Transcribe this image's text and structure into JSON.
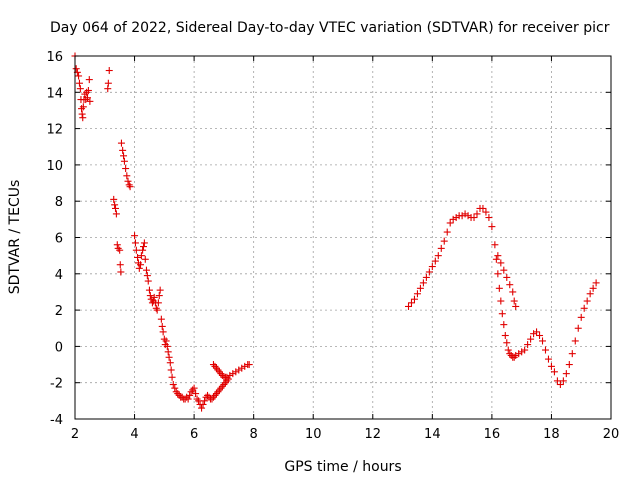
{
  "chart_data": {
    "type": "scatter",
    "title": "Day 064 of 2022, Sidereal Day-to-day VTEC variation (SDTVAR) for receiver picr",
    "xlabel": "GPS time / hours",
    "ylabel": "SDTVAR / TECUs",
    "xlim": [
      2,
      20
    ],
    "ylim": [
      -4,
      16
    ],
    "xticks": [
      "2",
      "4",
      "6",
      "8",
      "10",
      "12",
      "14",
      "16",
      "18",
      "20"
    ],
    "yticks": [
      "-4",
      "-2",
      "0",
      "2",
      "4",
      "6",
      "8",
      "10",
      "12",
      "14",
      "16"
    ],
    "grid": true,
    "marker": "+",
    "color": "#e00000",
    "series": [
      {
        "name": "SDTVAR",
        "points": [
          [
            2.0,
            16.0
          ],
          [
            2.04,
            15.3
          ],
          [
            2.08,
            15.1
          ],
          [
            2.12,
            14.9
          ],
          [
            2.15,
            14.5
          ],
          [
            2.18,
            14.2
          ],
          [
            2.2,
            13.6
          ],
          [
            2.22,
            13.1
          ],
          [
            2.24,
            12.8
          ],
          [
            2.26,
            12.6
          ],
          [
            2.28,
            13.2
          ],
          [
            2.3,
            13.6
          ],
          [
            2.33,
            13.9
          ],
          [
            2.36,
            13.6
          ],
          [
            2.39,
            14.0
          ],
          [
            2.42,
            13.7
          ],
          [
            2.45,
            14.1
          ],
          [
            2.48,
            14.7
          ],
          [
            2.5,
            13.5
          ],
          [
            3.1,
            14.2
          ],
          [
            3.12,
            14.5
          ],
          [
            3.15,
            15.2
          ],
          [
            3.3,
            8.1
          ],
          [
            3.33,
            7.8
          ],
          [
            3.36,
            7.6
          ],
          [
            3.39,
            7.3
          ],
          [
            3.42,
            5.6
          ],
          [
            3.45,
            5.4
          ],
          [
            3.5,
            5.3
          ],
          [
            3.52,
            4.5
          ],
          [
            3.54,
            4.1
          ],
          [
            3.56,
            11.2
          ],
          [
            3.6,
            10.8
          ],
          [
            3.63,
            10.5
          ],
          [
            3.66,
            10.2
          ],
          [
            3.7,
            9.8
          ],
          [
            3.74,
            9.4
          ],
          [
            3.78,
            9.1
          ],
          [
            3.82,
            8.9
          ],
          [
            3.85,
            8.8
          ],
          [
            4.0,
            6.1
          ],
          [
            4.03,
            5.7
          ],
          [
            4.06,
            5.3
          ],
          [
            4.1,
            4.9
          ],
          [
            4.13,
            4.6
          ],
          [
            4.16,
            4.3
          ],
          [
            4.2,
            4.5
          ],
          [
            4.23,
            5.0
          ],
          [
            4.27,
            5.3
          ],
          [
            4.3,
            5.5
          ],
          [
            4.33,
            5.7
          ],
          [
            4.36,
            4.8
          ],
          [
            4.4,
            4.2
          ],
          [
            4.43,
            3.9
          ],
          [
            4.46,
            3.6
          ],
          [
            4.5,
            3.1
          ],
          [
            4.53,
            2.8
          ],
          [
            4.56,
            2.6
          ],
          [
            4.6,
            2.4
          ],
          [
            4.63,
            2.5
          ],
          [
            4.66,
            2.7
          ],
          [
            4.7,
            2.4
          ],
          [
            4.73,
            2.1
          ],
          [
            4.76,
            2.0
          ],
          [
            4.8,
            2.4
          ],
          [
            4.83,
            2.8
          ],
          [
            4.86,
            3.1
          ],
          [
            4.9,
            1.5
          ],
          [
            4.93,
            1.1
          ],
          [
            4.96,
            0.8
          ],
          [
            5.0,
            0.4
          ],
          [
            5.03,
            0.1
          ],
          [
            5.06,
            0.3
          ],
          [
            5.1,
            0.0
          ],
          [
            5.13,
            -0.3
          ],
          [
            5.16,
            -0.6
          ],
          [
            5.2,
            -0.9
          ],
          [
            5.23,
            -1.3
          ],
          [
            5.26,
            -1.7
          ],
          [
            5.3,
            -2.1
          ],
          [
            5.35,
            -2.3
          ],
          [
            5.4,
            -2.5
          ],
          [
            5.45,
            -2.6
          ],
          [
            5.5,
            -2.7
          ],
          [
            5.55,
            -2.8
          ],
          [
            5.6,
            -2.8
          ],
          [
            5.65,
            -2.9
          ],
          [
            5.7,
            -2.9
          ],
          [
            5.75,
            -2.8
          ],
          [
            5.8,
            -2.9
          ],
          [
            5.85,
            -2.7
          ],
          [
            5.9,
            -2.5
          ],
          [
            5.95,
            -2.4
          ],
          [
            6.0,
            -2.3
          ],
          [
            6.05,
            -2.6
          ],
          [
            6.1,
            -2.9
          ],
          [
            6.15,
            -3.0
          ],
          [
            6.2,
            -3.2
          ],
          [
            6.25,
            -3.4
          ],
          [
            6.3,
            -3.2
          ],
          [
            6.35,
            -3.0
          ],
          [
            6.4,
            -2.8
          ],
          [
            6.45,
            -2.7
          ],
          [
            6.5,
            -2.8
          ],
          [
            6.55,
            -2.9
          ],
          [
            6.6,
            -2.9
          ],
          [
            6.65,
            -2.8
          ],
          [
            6.7,
            -2.7
          ],
          [
            6.75,
            -2.6
          ],
          [
            6.8,
            -2.5
          ],
          [
            6.85,
            -2.4
          ],
          [
            6.9,
            -2.3
          ],
          [
            6.95,
            -2.2
          ],
          [
            7.0,
            -2.1
          ],
          [
            7.05,
            -2.0
          ],
          [
            7.1,
            -1.9
          ],
          [
            7.15,
            -1.8
          ],
          [
            6.65,
            -1.0
          ],
          [
            6.7,
            -1.1
          ],
          [
            6.75,
            -1.2
          ],
          [
            6.8,
            -1.3
          ],
          [
            6.85,
            -1.4
          ],
          [
            6.9,
            -1.5
          ],
          [
            6.95,
            -1.6
          ],
          [
            7.0,
            -1.7
          ],
          [
            7.05,
            -1.7
          ],
          [
            7.1,
            -1.7
          ],
          [
            7.2,
            -1.6
          ],
          [
            7.3,
            -1.5
          ],
          [
            7.4,
            -1.4
          ],
          [
            7.5,
            -1.3
          ],
          [
            7.6,
            -1.2
          ],
          [
            7.7,
            -1.1
          ],
          [
            7.8,
            -1.0
          ],
          [
            7.85,
            -1.0
          ],
          [
            13.2,
            2.2
          ],
          [
            13.3,
            2.4
          ],
          [
            13.4,
            2.6
          ],
          [
            13.5,
            2.9
          ],
          [
            13.6,
            3.2
          ],
          [
            13.7,
            3.5
          ],
          [
            13.8,
            3.8
          ],
          [
            13.9,
            4.1
          ],
          [
            14.0,
            4.4
          ],
          [
            14.1,
            4.7
          ],
          [
            14.2,
            5.0
          ],
          [
            14.3,
            5.4
          ],
          [
            14.4,
            5.8
          ],
          [
            14.5,
            6.3
          ],
          [
            14.6,
            6.8
          ],
          [
            14.7,
            7.0
          ],
          [
            14.8,
            7.1
          ],
          [
            14.9,
            7.2
          ],
          [
            15.0,
            7.2
          ],
          [
            15.1,
            7.3
          ],
          [
            15.2,
            7.2
          ],
          [
            15.3,
            7.1
          ],
          [
            15.4,
            7.1
          ],
          [
            15.5,
            7.3
          ],
          [
            15.6,
            7.6
          ],
          [
            15.7,
            7.6
          ],
          [
            15.8,
            7.4
          ],
          [
            15.9,
            7.1
          ],
          [
            16.0,
            6.6
          ],
          [
            16.1,
            5.6
          ],
          [
            16.15,
            4.8
          ],
          [
            16.2,
            4.0
          ],
          [
            16.25,
            3.2
          ],
          [
            16.3,
            2.5
          ],
          [
            16.35,
            1.8
          ],
          [
            16.4,
            1.2
          ],
          [
            16.45,
            0.6
          ],
          [
            16.5,
            0.2
          ],
          [
            16.55,
            -0.2
          ],
          [
            16.6,
            -0.4
          ],
          [
            16.65,
            -0.5
          ],
          [
            16.7,
            -0.6
          ],
          [
            16.75,
            -0.6
          ],
          [
            16.8,
            -0.5
          ],
          [
            16.9,
            -0.4
          ],
          [
            17.0,
            -0.3
          ],
          [
            17.1,
            -0.2
          ],
          [
            17.2,
            0.1
          ],
          [
            17.3,
            0.4
          ],
          [
            17.4,
            0.7
          ],
          [
            17.5,
            0.8
          ],
          [
            17.6,
            0.6
          ],
          [
            17.7,
            0.3
          ],
          [
            17.8,
            -0.2
          ],
          [
            17.9,
            -0.7
          ],
          [
            18.0,
            -1.1
          ],
          [
            18.1,
            -1.4
          ],
          [
            18.2,
            -1.9
          ],
          [
            18.3,
            -2.1
          ],
          [
            18.4,
            -1.9
          ],
          [
            18.5,
            -1.5
          ],
          [
            18.6,
            -1.0
          ],
          [
            18.7,
            -0.4
          ],
          [
            18.8,
            0.3
          ],
          [
            18.9,
            1.0
          ],
          [
            19.0,
            1.6
          ],
          [
            19.1,
            2.1
          ],
          [
            19.2,
            2.5
          ],
          [
            19.3,
            2.9
          ],
          [
            19.4,
            3.2
          ],
          [
            19.5,
            3.5
          ],
          [
            16.2,
            5.0
          ],
          [
            16.3,
            4.6
          ],
          [
            16.4,
            4.2
          ],
          [
            16.5,
            3.8
          ],
          [
            16.6,
            3.4
          ],
          [
            16.7,
            3.0
          ],
          [
            16.75,
            2.5
          ],
          [
            16.8,
            2.2
          ]
        ]
      }
    ]
  }
}
